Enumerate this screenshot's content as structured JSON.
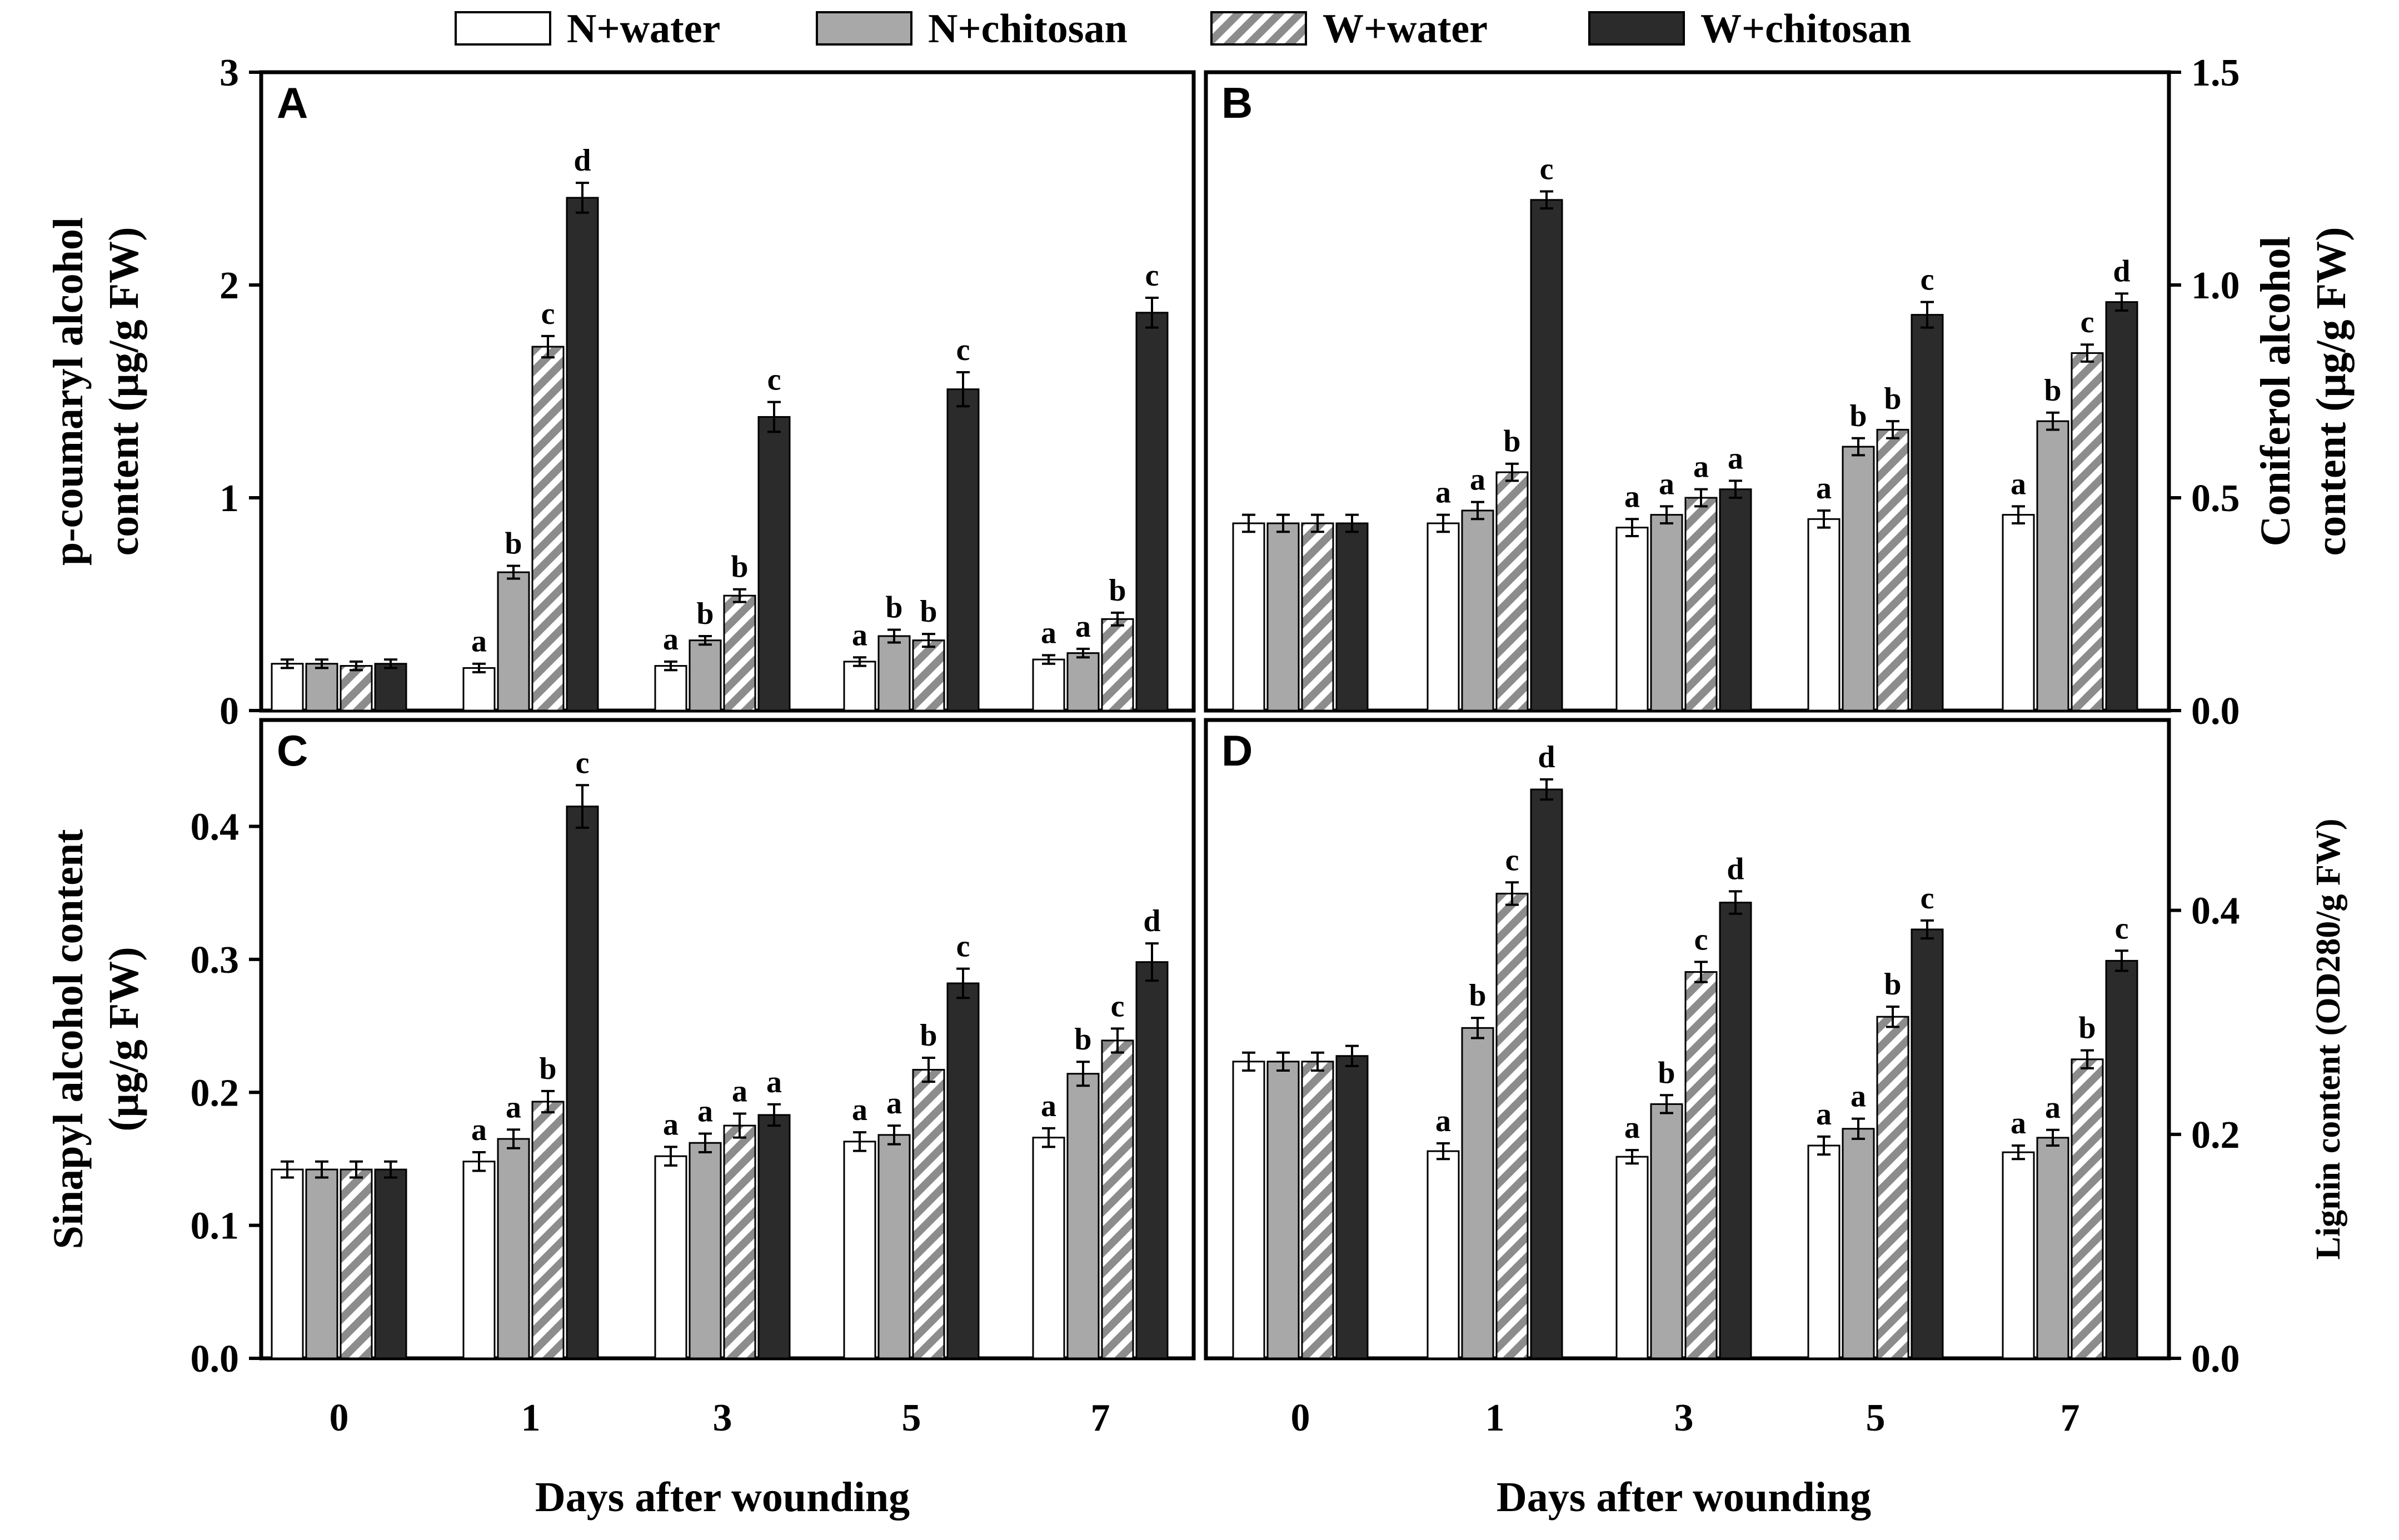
{
  "chart_data": {
    "type": "bar",
    "legend": {
      "position": "top",
      "entries": [
        {
          "label": "N+water",
          "fill": "#ffffff"
        },
        {
          "label": "N+chitosan",
          "fill": "#a8a8a8"
        },
        {
          "label": "W+water",
          "fill": "hatch"
        },
        {
          "label": "W+chitosan",
          "fill": "#2b2b2b"
        }
      ]
    },
    "colors": {
      "n_water": "#ffffff",
      "n_chitosan": "#a8a8a8",
      "w_water_stripe": "#8c8c8c",
      "w_chitosan": "#2b2b2b",
      "axis": "#000000"
    },
    "categories": [
      "0",
      "1",
      "3",
      "5",
      "7"
    ],
    "xlabel": "Days after wounding",
    "panels": [
      {
        "label": "A",
        "ylabel_lines": [
          "p-coumaryl  alcohol",
          "content (μg/g FW)"
        ],
        "ylim": [
          0,
          3
        ],
        "ticks": [
          0,
          1,
          2,
          3
        ],
        "tick_labels": [
          "0",
          "1",
          "2",
          "3"
        ],
        "series": [
          {
            "name": "N+water",
            "values": [
              0.22,
              0.2,
              0.21,
              0.23,
              0.24
            ],
            "errors": [
              0.02,
              0.02,
              0.02,
              0.02,
              0.02
            ],
            "letters": [
              "",
              "a",
              "a",
              "a",
              "a"
            ]
          },
          {
            "name": "N+chitosan",
            "values": [
              0.22,
              0.65,
              0.33,
              0.35,
              0.27
            ],
            "errors": [
              0.02,
              0.03,
              0.02,
              0.03,
              0.02
            ],
            "letters": [
              "",
              "b",
              "b",
              "b",
              "a"
            ]
          },
          {
            "name": "W+water",
            "values": [
              0.21,
              1.71,
              0.54,
              0.33,
              0.43
            ],
            "errors": [
              0.02,
              0.05,
              0.03,
              0.03,
              0.03
            ],
            "letters": [
              "",
              "c",
              "b",
              "b",
              "b"
            ]
          },
          {
            "name": "W+chitosan",
            "values": [
              0.22,
              2.41,
              1.38,
              1.51,
              1.87
            ],
            "errors": [
              0.02,
              0.07,
              0.07,
              0.08,
              0.07
            ],
            "letters": [
              "",
              "d",
              "c",
              "c",
              "c"
            ]
          }
        ]
      },
      {
        "label": "B",
        "ylabel_lines": [
          "Coniferol alcohol",
          "content (μg/g FW)"
        ],
        "ylim": [
          0,
          1.5
        ],
        "ticks": [
          0,
          0.5,
          1.0,
          1.5
        ],
        "tick_labels": [
          "0.0",
          "0.5",
          "1.0",
          "1.5"
        ],
        "series": [
          {
            "name": "N+water",
            "values": [
              0.44,
              0.44,
              0.43,
              0.45,
              0.46
            ],
            "errors": [
              0.02,
              0.02,
              0.02,
              0.02,
              0.02
            ],
            "letters": [
              "",
              "a",
              "a",
              "a",
              "a"
            ]
          },
          {
            "name": "N+chitosan",
            "values": [
              0.44,
              0.47,
              0.46,
              0.62,
              0.68
            ],
            "errors": [
              0.02,
              0.02,
              0.02,
              0.02,
              0.02
            ],
            "letters": [
              "",
              "a",
              "a",
              "b",
              "b"
            ]
          },
          {
            "name": "W+water",
            "values": [
              0.44,
              0.56,
              0.5,
              0.66,
              0.84
            ],
            "errors": [
              0.02,
              0.02,
              0.02,
              0.02,
              0.02
            ],
            "letters": [
              "",
              "b",
              "a",
              "b",
              "c"
            ]
          },
          {
            "name": "W+chitosan",
            "values": [
              0.44,
              1.2,
              0.52,
              0.93,
              0.96
            ],
            "errors": [
              0.02,
              0.02,
              0.02,
              0.03,
              0.02
            ],
            "letters": [
              "",
              "c",
              "a",
              "c",
              "d"
            ]
          }
        ]
      },
      {
        "label": "C",
        "ylabel_lines": [
          "Sinapyl alcohol content",
          "(μg/g FW)"
        ],
        "ylim": [
          0,
          0.48
        ],
        "ticks": [
          0,
          0.1,
          0.2,
          0.3,
          0.4
        ],
        "tick_labels": [
          "0.0",
          "0.1",
          "0.2",
          "0.3",
          "0.4"
        ],
        "series": [
          {
            "name": "N+water",
            "values": [
              0.142,
              0.148,
              0.152,
              0.163,
              0.166
            ],
            "errors": [
              0.006,
              0.007,
              0.007,
              0.007,
              0.007
            ],
            "letters": [
              "",
              "a",
              "a",
              "a",
              "a"
            ]
          },
          {
            "name": "N+chitosan",
            "values": [
              0.142,
              0.165,
              0.162,
              0.168,
              0.214
            ],
            "errors": [
              0.006,
              0.007,
              0.007,
              0.007,
              0.009
            ],
            "letters": [
              "",
              "a",
              "a",
              "a",
              "b"
            ]
          },
          {
            "name": "W+water",
            "values": [
              0.142,
              0.193,
              0.175,
              0.217,
              0.239
            ],
            "errors": [
              0.006,
              0.008,
              0.009,
              0.009,
              0.009
            ],
            "letters": [
              "",
              "b",
              "a",
              "b",
              "c"
            ]
          },
          {
            "name": "W+chitosan",
            "values": [
              0.142,
              0.415,
              0.183,
              0.282,
              0.298
            ],
            "errors": [
              0.006,
              0.016,
              0.008,
              0.011,
              0.014
            ],
            "letters": [
              "",
              "c",
              "a",
              "c",
              "d"
            ]
          }
        ]
      },
      {
        "label": "D",
        "ylabel_lines": [
          "Lignin content (OD280/g FW)"
        ],
        "ylim": [
          0,
          0.57
        ],
        "ticks": [
          0,
          0.2,
          0.4
        ],
        "tick_labels": [
          "0.0",
          "0.2",
          "0.4"
        ],
        "series": [
          {
            "name": "N+water",
            "values": [
              0.265,
              0.185,
              0.18,
              0.19,
              0.184
            ],
            "errors": [
              0.008,
              0.007,
              0.006,
              0.008,
              0.006
            ],
            "letters": [
              "",
              "a",
              "a",
              "a",
              "a"
            ]
          },
          {
            "name": "N+chitosan",
            "values": [
              0.265,
              0.295,
              0.227,
              0.205,
              0.197
            ],
            "errors": [
              0.008,
              0.009,
              0.008,
              0.009,
              0.007
            ],
            "letters": [
              "",
              "b",
              "b",
              "a",
              "a"
            ]
          },
          {
            "name": "W+water",
            "values": [
              0.265,
              0.415,
              0.345,
              0.305,
              0.267
            ],
            "errors": [
              0.008,
              0.01,
              0.009,
              0.009,
              0.008
            ],
            "letters": [
              "",
              "c",
              "c",
              "b",
              "b"
            ]
          },
          {
            "name": "W+chitosan",
            "values": [
              0.27,
              0.508,
              0.407,
              0.383,
              0.355
            ],
            "errors": [
              0.009,
              0.009,
              0.01,
              0.008,
              0.009
            ],
            "letters": [
              "",
              "d",
              "d",
              "c",
              "c"
            ]
          }
        ]
      }
    ]
  }
}
